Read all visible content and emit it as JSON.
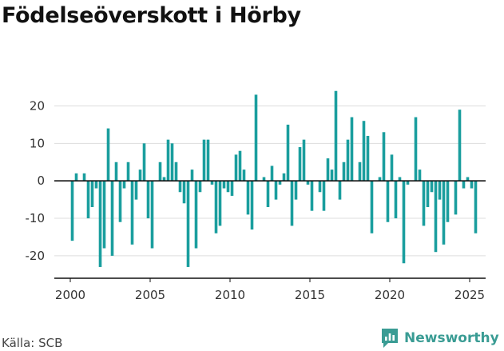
{
  "title": "Födelseöverskott i Hörby",
  "source": "Källa: SCB",
  "brand": {
    "name": "Newsworthy",
    "icon": "newsworthy-logo-icon",
    "color": "#3a9c94"
  },
  "colors": {
    "bar": "#1a9e9e",
    "zero_line": "#111111",
    "grid": "#dddddd",
    "axis": "#111111"
  },
  "chart_data": {
    "type": "bar",
    "title": "Födelseöverskott i Hörby",
    "xlabel": "",
    "ylabel": "",
    "x_ticks": [
      "2000",
      "2005",
      "2010",
      "2015",
      "2020",
      "2025"
    ],
    "y_ticks": [
      "20",
      "10",
      "0",
      "-10",
      "-20"
    ],
    "xlim": [
      1999,
      2026
    ],
    "ylim": [
      -26,
      28
    ],
    "grid": true,
    "categories": [
      "2000-01",
      "2000-02",
      "2000-03",
      "2000-04",
      "2001-01",
      "2001-02",
      "2001-03",
      "2001-04",
      "2002-01",
      "2002-02",
      "2002-03",
      "2002-04",
      "2003-01",
      "2003-02",
      "2003-03",
      "2003-04",
      "2004-01",
      "2004-02",
      "2004-03",
      "2004-04",
      "2005-01",
      "2005-02",
      "2005-03",
      "2005-04",
      "2006-01",
      "2006-02",
      "2006-03",
      "2006-04",
      "2007-01",
      "2007-02",
      "2007-03",
      "2007-04",
      "2008-01",
      "2008-02",
      "2008-03",
      "2008-04",
      "2009-01",
      "2009-02",
      "2009-03",
      "2009-04",
      "2010-01",
      "2010-02",
      "2010-03",
      "2010-04",
      "2011-01",
      "2011-02",
      "2011-03",
      "2011-04",
      "2012-01",
      "2012-02",
      "2012-03",
      "2012-04",
      "2013-01",
      "2013-02",
      "2013-03",
      "2013-04",
      "2014-01",
      "2014-02",
      "2014-03",
      "2014-04",
      "2015-01",
      "2015-02",
      "2015-03",
      "2015-04",
      "2016-01",
      "2016-02",
      "2016-03",
      "2016-04",
      "2017-01",
      "2017-02",
      "2017-03",
      "2017-04",
      "2018-01",
      "2018-02",
      "2018-03",
      "2018-04",
      "2019-01",
      "2019-02",
      "2019-03",
      "2019-04",
      "2020-01",
      "2020-02",
      "2020-03",
      "2020-04",
      "2021-01",
      "2021-02",
      "2021-03",
      "2021-04",
      "2022-01",
      "2022-02",
      "2022-03",
      "2022-04",
      "2023-01",
      "2023-02",
      "2023-03",
      "2023-04",
      "2024-01",
      "2024-02",
      "2024-03",
      "2024-04",
      "2025-01",
      "2025-02",
      "2025-03"
    ],
    "values": [
      -16,
      2,
      0,
      2,
      -10,
      -7,
      -2,
      -23,
      -18,
      14,
      -20,
      5,
      -11,
      -2,
      5,
      -17,
      -5,
      3,
      10,
      -10,
      -18,
      0,
      5,
      1,
      11,
      10,
      5,
      -3,
      -6,
      -23,
      3,
      -18,
      -3,
      11,
      11,
      -1,
      -14,
      -12,
      -2,
      -3,
      -4,
      7,
      8,
      3,
      -9,
      -13,
      23,
      0,
      1,
      -7,
      4,
      -5,
      -1,
      2,
      15,
      -12,
      -5,
      9,
      11,
      -1,
      -8,
      0,
      -3,
      -8,
      6,
      3,
      24,
      -5,
      5,
      11,
      17,
      0,
      5,
      16,
      12,
      -14,
      0,
      1,
      13,
      -11,
      7,
      -10,
      1,
      -22,
      -1,
      0,
      17,
      3,
      -12,
      -7,
      -3,
      -19,
      -5,
      -17,
      -11,
      0,
      -9,
      19,
      -2,
      1,
      -2,
      -14,
      0
    ]
  }
}
